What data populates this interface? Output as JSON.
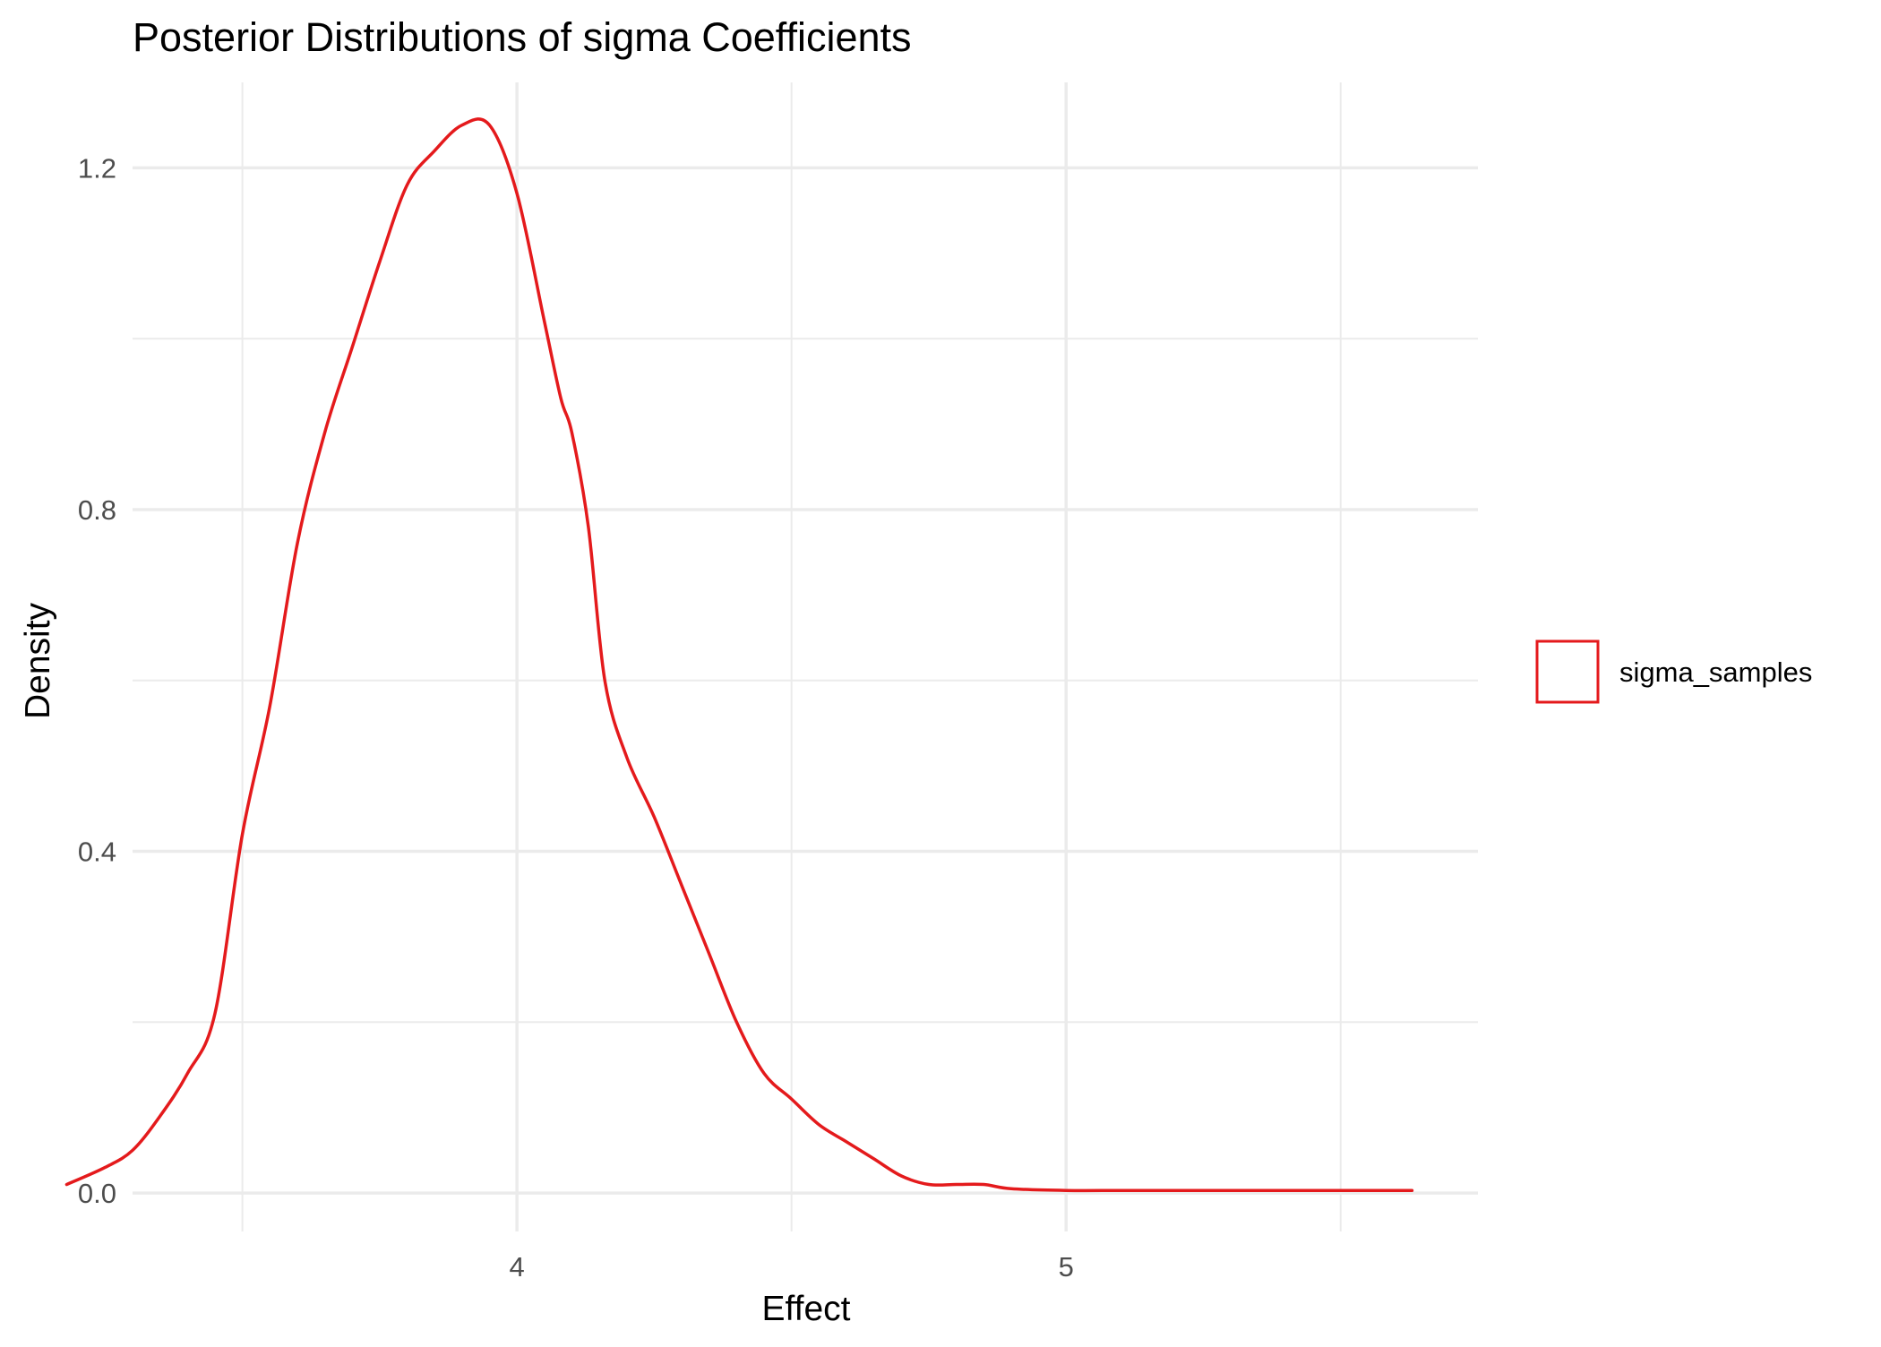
{
  "chart_data": {
    "type": "line",
    "title": "Posterior Distributions of sigma Coefficients",
    "xlabel": "Effect",
    "ylabel": "Density",
    "xlim": [
      3.3,
      5.75
    ],
    "ylim": [
      -0.045,
      1.3
    ],
    "x_ticks": [
      {
        "value": 4,
        "label": "4"
      },
      {
        "value": 5,
        "label": "5"
      }
    ],
    "x_minor_gridlines": [
      3.5,
      4.5,
      5.5
    ],
    "y_ticks": [
      {
        "value": 0.0,
        "label": "0.0"
      },
      {
        "value": 0.4,
        "label": "0.4"
      },
      {
        "value": 0.8,
        "label": "0.8"
      },
      {
        "value": 1.2,
        "label": "1.2"
      }
    ],
    "y_minor_gridlines": [
      0.2,
      0.6,
      1.0
    ],
    "grid": true,
    "legend_position": "right",
    "series": [
      {
        "name": "sigma_samples",
        "color": "#E41A1C",
        "x": [
          3.18,
          3.25,
          3.3,
          3.35,
          3.4,
          3.45,
          3.5,
          3.55,
          3.6,
          3.65,
          3.7,
          3.75,
          3.8,
          3.85,
          3.9,
          3.95,
          4.0,
          4.05,
          4.08,
          4.1,
          4.13,
          4.16,
          4.2,
          4.25,
          4.3,
          4.35,
          4.4,
          4.45,
          4.5,
          4.55,
          4.6,
          4.65,
          4.7,
          4.75,
          4.8,
          4.85,
          4.9,
          5.0,
          5.1,
          5.2,
          5.3,
          5.4,
          5.5,
          5.6,
          5.63
        ],
        "y": [
          0.01,
          0.03,
          0.05,
          0.09,
          0.14,
          0.21,
          0.42,
          0.57,
          0.76,
          0.89,
          0.99,
          1.09,
          1.18,
          1.22,
          1.25,
          1.25,
          1.17,
          1.02,
          0.93,
          0.89,
          0.78,
          0.6,
          0.51,
          0.44,
          0.36,
          0.28,
          0.2,
          0.14,
          0.11,
          0.08,
          0.06,
          0.04,
          0.02,
          0.01,
          0.01,
          0.01,
          0.005,
          0.003,
          0.003,
          0.003,
          0.003,
          0.003,
          0.003,
          0.003,
          0.003
        ]
      }
    ]
  }
}
